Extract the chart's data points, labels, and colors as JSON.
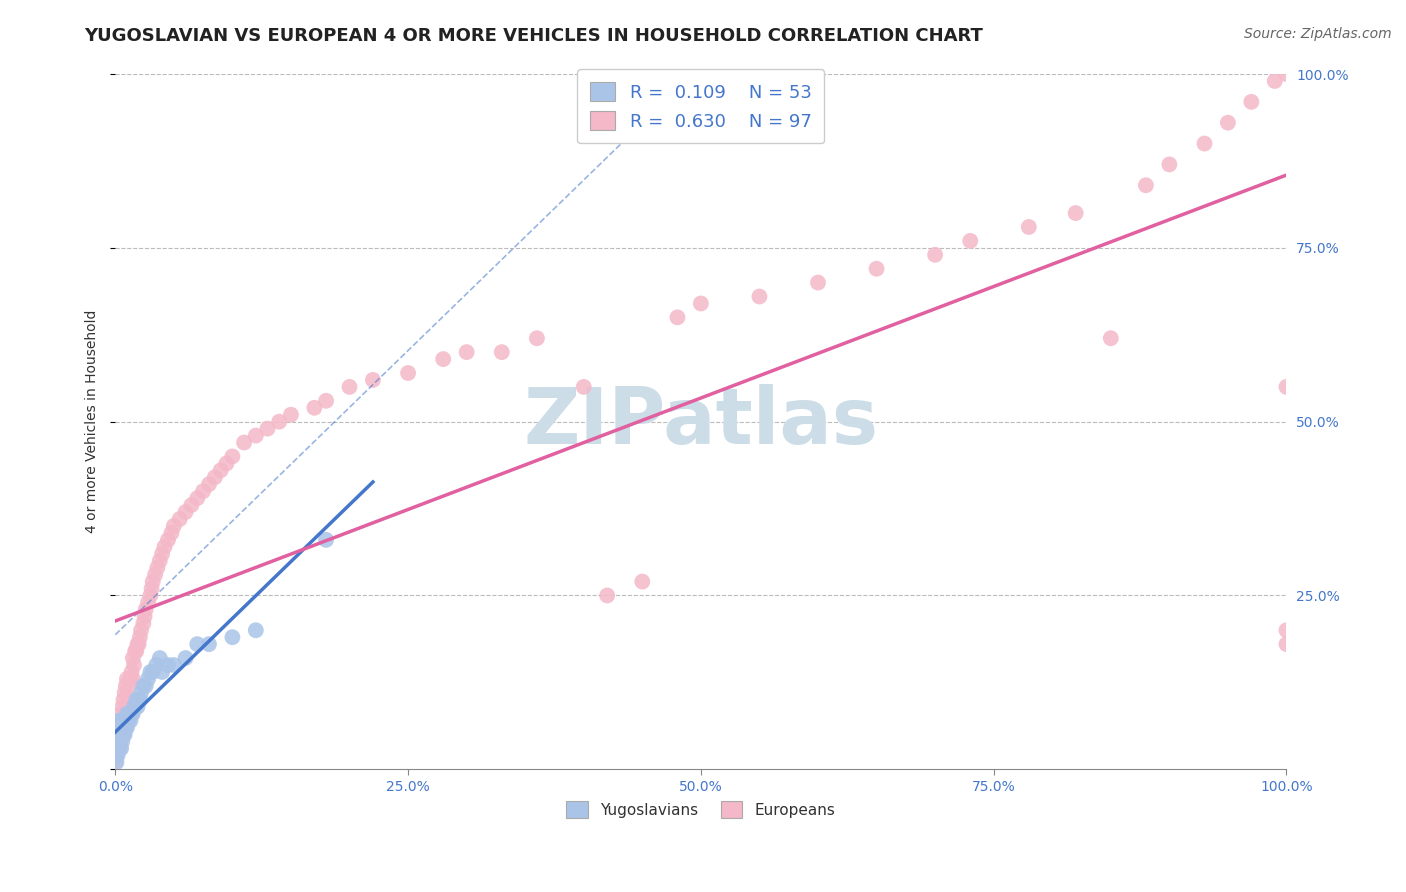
{
  "title": "YUGOSLAVIAN VS EUROPEAN 4 OR MORE VEHICLES IN HOUSEHOLD CORRELATION CHART",
  "source": "Source: ZipAtlas.com",
  "ylabel": "4 or more Vehicles in Household",
  "xlim": [
    0.0,
    1.0
  ],
  "ylim": [
    0.0,
    1.0
  ],
  "x_ticks": [
    0.0,
    0.25,
    0.5,
    0.75,
    1.0
  ],
  "x_tick_labels": [
    "0.0%",
    "25.0%",
    "50.0%",
    "75.0%",
    "100.0%"
  ],
  "y_ticks": [
    0.0,
    0.25,
    0.5,
    0.75,
    1.0
  ],
  "y_tick_labels": [
    "",
    "25.0%",
    "50.0%",
    "75.0%",
    "100.0%"
  ],
  "legend_r1": "R =  0.109    N = 53",
  "legend_r2": "R =  0.630    N = 97",
  "legend_color1": "#aac4e8",
  "legend_color2": "#f4b8c8",
  "scatter_color_yug": "#aac4e8",
  "scatter_color_eur": "#f4b8c8",
  "line_color_yug": "#4477cc",
  "line_color_eur": "#e060a0",
  "watermark_color": "#ccdde8",
  "title_fontsize": 13,
  "source_fontsize": 10,
  "axis_label_fontsize": 10,
  "tick_fontsize": 10,
  "legend_fontsize": 13,
  "yug_x": [
    0.0,
    0.0,
    0.001,
    0.001,
    0.001,
    0.002,
    0.002,
    0.002,
    0.003,
    0.003,
    0.003,
    0.004,
    0.004,
    0.005,
    0.005,
    0.005,
    0.006,
    0.006,
    0.007,
    0.007,
    0.008,
    0.008,
    0.009,
    0.01,
    0.01,
    0.011,
    0.012,
    0.013,
    0.014,
    0.015,
    0.016,
    0.017,
    0.018,
    0.019,
    0.02,
    0.021,
    0.022,
    0.024,
    0.026,
    0.028,
    0.03,
    0.032,
    0.035,
    0.038,
    0.04,
    0.045,
    0.05,
    0.06,
    0.07,
    0.08,
    0.1,
    0.12,
    0.18
  ],
  "yug_y": [
    0.02,
    0.04,
    0.01,
    0.03,
    0.05,
    0.02,
    0.04,
    0.06,
    0.03,
    0.05,
    0.07,
    0.04,
    0.06,
    0.03,
    0.05,
    0.07,
    0.04,
    0.06,
    0.05,
    0.07,
    0.05,
    0.07,
    0.06,
    0.06,
    0.08,
    0.07,
    0.08,
    0.07,
    0.08,
    0.08,
    0.09,
    0.09,
    0.1,
    0.09,
    0.1,
    0.1,
    0.11,
    0.12,
    0.12,
    0.13,
    0.14,
    0.14,
    0.15,
    0.16,
    0.14,
    0.15,
    0.15,
    0.16,
    0.18,
    0.18,
    0.19,
    0.2,
    0.33
  ],
  "eur_x": [
    0.0,
    0.0,
    0.001,
    0.001,
    0.002,
    0.002,
    0.003,
    0.003,
    0.004,
    0.004,
    0.005,
    0.005,
    0.006,
    0.006,
    0.007,
    0.007,
    0.008,
    0.008,
    0.009,
    0.009,
    0.01,
    0.01,
    0.011,
    0.012,
    0.013,
    0.014,
    0.015,
    0.015,
    0.016,
    0.017,
    0.018,
    0.019,
    0.02,
    0.021,
    0.022,
    0.024,
    0.025,
    0.026,
    0.028,
    0.03,
    0.031,
    0.032,
    0.034,
    0.036,
    0.038,
    0.04,
    0.042,
    0.045,
    0.048,
    0.05,
    0.055,
    0.06,
    0.065,
    0.07,
    0.075,
    0.08,
    0.085,
    0.09,
    0.095,
    0.1,
    0.11,
    0.12,
    0.13,
    0.14,
    0.15,
    0.17,
    0.18,
    0.2,
    0.22,
    0.25,
    0.28,
    0.3,
    0.33,
    0.36,
    0.4,
    0.42,
    0.45,
    0.48,
    0.5,
    0.55,
    0.6,
    0.65,
    0.7,
    0.73,
    0.78,
    0.82,
    0.85,
    0.88,
    0.9,
    0.93,
    0.95,
    0.97,
    0.99,
    1.0,
    1.0,
    1.0,
    1.0
  ],
  "eur_y": [
    0.01,
    0.03,
    0.02,
    0.04,
    0.03,
    0.05,
    0.04,
    0.06,
    0.03,
    0.07,
    0.05,
    0.08,
    0.06,
    0.09,
    0.05,
    0.1,
    0.07,
    0.11,
    0.08,
    0.12,
    0.09,
    0.13,
    0.1,
    0.12,
    0.13,
    0.14,
    0.13,
    0.16,
    0.15,
    0.17,
    0.17,
    0.18,
    0.18,
    0.19,
    0.2,
    0.21,
    0.22,
    0.23,
    0.24,
    0.25,
    0.26,
    0.27,
    0.28,
    0.29,
    0.3,
    0.31,
    0.32,
    0.33,
    0.34,
    0.35,
    0.36,
    0.37,
    0.38,
    0.39,
    0.4,
    0.41,
    0.42,
    0.43,
    0.44,
    0.45,
    0.47,
    0.48,
    0.49,
    0.5,
    0.51,
    0.52,
    0.53,
    0.55,
    0.56,
    0.57,
    0.59,
    0.6,
    0.6,
    0.62,
    0.55,
    0.25,
    0.27,
    0.65,
    0.67,
    0.68,
    0.7,
    0.72,
    0.74,
    0.76,
    0.78,
    0.8,
    0.62,
    0.84,
    0.87,
    0.9,
    0.93,
    0.96,
    0.99,
    1.0,
    0.55,
    0.2,
    0.18
  ]
}
